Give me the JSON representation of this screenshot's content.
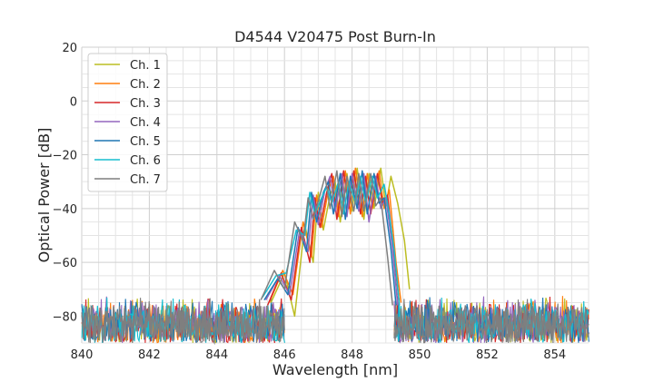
{
  "chart_data": {
    "type": "line",
    "title": "D4544 V20475 Post Burn-In",
    "xlabel": "Wavelength [nm]",
    "ylabel": "Optical Power [dB]",
    "xlim": [
      840,
      855
    ],
    "ylim": [
      -90,
      20
    ],
    "x_ticks": [
      840,
      842,
      844,
      846,
      848,
      850,
      852,
      854
    ],
    "y_ticks": [
      20,
      0,
      -20,
      -40,
      -60,
      -80
    ],
    "x_tick_labels": [
      "840",
      "842",
      "844",
      "846",
      "848",
      "850",
      "852",
      "854"
    ],
    "y_tick_labels": [
      "20",
      "0",
      "−20",
      "−40",
      "−60",
      "−80"
    ],
    "grid": true,
    "legend_position": "upper-left",
    "noise_floor": [
      -90,
      -72
    ],
    "series": [
      {
        "name": "Ch. 1",
        "color": "#bcbd22",
        "x": [
          845.6,
          846.0,
          846.3,
          846.6,
          846.85,
          847.0,
          847.15,
          847.35,
          847.5,
          847.65,
          847.85,
          848.0,
          848.15,
          848.35,
          848.5,
          848.65,
          848.85,
          849.0,
          849.15,
          849.35,
          849.55,
          849.7
        ],
        "y": [
          -75,
          -64,
          -80,
          -46,
          -60,
          -34,
          -48,
          -35,
          -30,
          -45,
          -27,
          -41,
          -25,
          -44,
          -27,
          -40,
          -25,
          -39,
          -28,
          -38,
          -52,
          -70
        ]
      },
      {
        "name": "Ch. 2",
        "color": "#ff7f0e",
        "x": [
          845.55,
          845.95,
          846.25,
          846.55,
          846.8,
          846.95,
          847.1,
          847.3,
          847.45,
          847.6,
          847.8,
          847.95,
          848.1,
          848.3,
          848.45,
          848.6,
          848.8,
          848.95,
          849.1,
          849.3,
          849.45
        ],
        "y": [
          -75,
          -63,
          -72,
          -45,
          -58,
          -35,
          -47,
          -33,
          -28,
          -43,
          -26,
          -42,
          -25,
          -43,
          -27,
          -40,
          -26,
          -40,
          -33,
          -60,
          -75
        ]
      },
      {
        "name": "Ch. 3",
        "color": "#d62728",
        "x": [
          845.5,
          845.9,
          846.2,
          846.5,
          846.75,
          846.9,
          847.05,
          847.25,
          847.4,
          847.55,
          847.75,
          847.9,
          848.05,
          848.25,
          848.4,
          848.55,
          848.75,
          848.9,
          849.05,
          849.25,
          849.4
        ],
        "y": [
          -76,
          -64,
          -74,
          -47,
          -60,
          -36,
          -47,
          -34,
          -27,
          -44,
          -26,
          -40,
          -26,
          -42,
          -28,
          -42,
          -27,
          -38,
          -35,
          -58,
          -76
        ]
      },
      {
        "name": "Ch. 4",
        "color": "#9467bd",
        "x": [
          845.45,
          845.85,
          846.15,
          846.45,
          846.7,
          846.85,
          847.0,
          847.2,
          847.35,
          847.5,
          847.7,
          847.85,
          848.0,
          848.2,
          848.35,
          848.5,
          848.7,
          848.85,
          849.0,
          849.2,
          849.35
        ],
        "y": [
          -74,
          -65,
          -72,
          -48,
          -56,
          -35,
          -46,
          -33,
          -28,
          -41,
          -27,
          -43,
          -27,
          -41,
          -27,
          -45,
          -28,
          -40,
          -36,
          -55,
          -76
        ]
      },
      {
        "name": "Ch. 5",
        "color": "#1f77b4",
        "x": [
          845.4,
          845.8,
          846.1,
          846.4,
          846.65,
          846.8,
          846.95,
          847.15,
          847.3,
          847.45,
          847.65,
          847.8,
          847.95,
          848.15,
          848.3,
          848.45,
          848.65,
          848.8,
          848.95,
          849.15,
          849.3
        ],
        "y": [
          -74,
          -66,
          -72,
          -47,
          -56,
          -34,
          -45,
          -34,
          -30,
          -42,
          -27,
          -44,
          -28,
          -40,
          -26,
          -42,
          -27,
          -38,
          -36,
          -55,
          -76
        ]
      },
      {
        "name": "Ch. 6",
        "color": "#17becf",
        "x": [
          845.35,
          845.75,
          846.05,
          846.35,
          846.6,
          846.75,
          846.9,
          847.1,
          847.25,
          847.4,
          847.6,
          847.75,
          847.9,
          848.1,
          848.25,
          848.4,
          848.6,
          848.75,
          848.95,
          849.1,
          849.25,
          849.4
        ],
        "y": [
          -73,
          -65,
          -64,
          -48,
          -50,
          -34,
          -42,
          -36,
          -32,
          -38,
          -30,
          -42,
          -30,
          -38,
          -28,
          -38,
          -28,
          -36,
          -31,
          -42,
          -56,
          -76
        ]
      },
      {
        "name": "Ch. 7",
        "color": "#7f7f7f",
        "x": [
          845.3,
          845.7,
          846.0,
          846.3,
          846.55,
          846.7,
          846.85,
          847.05,
          847.2,
          847.35,
          847.55,
          847.7,
          847.85,
          848.05,
          848.2,
          848.35,
          848.55,
          848.7,
          848.85,
          849.05,
          849.2
        ],
        "y": [
          -74,
          -63,
          -70,
          -45,
          -52,
          -36,
          -44,
          -35,
          -28,
          -40,
          -26,
          -43,
          -28,
          -41,
          -27,
          -41,
          -27,
          -39,
          -36,
          -58,
          -76
        ]
      }
    ]
  }
}
